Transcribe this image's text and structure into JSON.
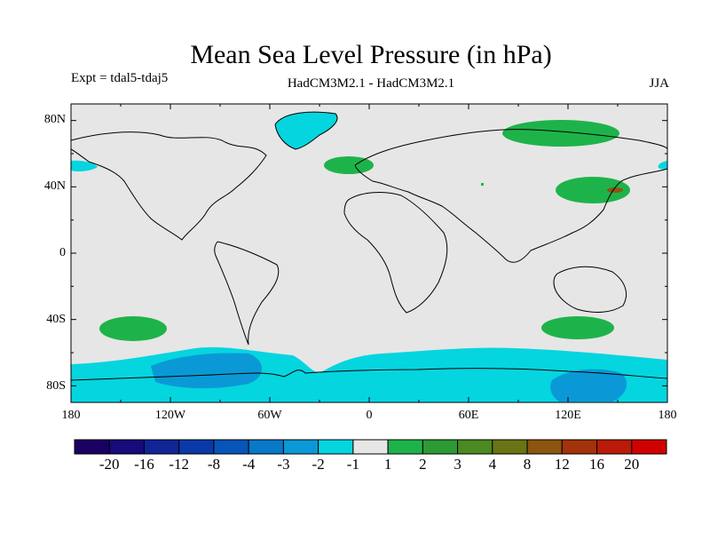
{
  "header": {
    "title": "Mean Sea Level Pressure (in hPa)",
    "experiment": "Expt = tdal5-tdaj5",
    "models": "HadCM3M2.1 - HadCM3M2.1",
    "season": "JJA"
  },
  "axes": {
    "lat_ticks": [
      "80N",
      "40N",
      "0",
      "40S",
      "80S"
    ],
    "lon_ticks": [
      "180",
      "120W",
      "60W",
      "0",
      "60E",
      "120E",
      "180"
    ]
  },
  "colorbar": {
    "labels": [
      "-20",
      "-16",
      "-12",
      "-8",
      "-4",
      "-3",
      "-2",
      "-1",
      "1",
      "2",
      "3",
      "4",
      "8",
      "12",
      "16",
      "20"
    ],
    "colors": [
      "#1b0063",
      "#170a7b",
      "#102596",
      "#0a3aa8",
      "#0755b8",
      "#0a78c8",
      "#0a99d6",
      "#05d5df",
      "#e6e6e6",
      "#1eb34a",
      "#2d9a33",
      "#4a8a20",
      "#6b7415",
      "#8c5510",
      "#a3330a",
      "#bb1a08",
      "#d10000"
    ]
  },
  "colors": {
    "ocean_background": "#e6e6e6",
    "neg_strong": "#0a99d6",
    "neg_weak": "#05d5df",
    "pos_weak": "#1eb34a",
    "pos_mid": "#8c5510"
  }
}
